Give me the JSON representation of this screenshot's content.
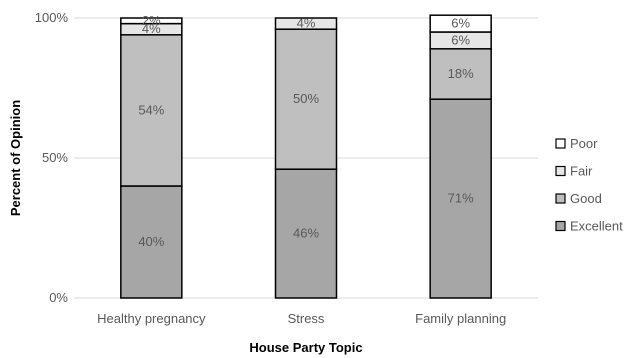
{
  "chart_data": {
    "type": "bar",
    "stacked": true,
    "categories": [
      "Healthy pregnancy",
      "Stress",
      "Family planning"
    ],
    "series": [
      {
        "name": "Excellent",
        "values": [
          40,
          46,
          71
        ],
        "labels": [
          "40%",
          "46%",
          "71%"
        ],
        "color": "#a6a6a6"
      },
      {
        "name": "Good",
        "values": [
          54,
          50,
          18
        ],
        "labels": [
          "54%",
          "50%",
          "18%"
        ],
        "color": "#bfbfbf"
      },
      {
        "name": "Fair",
        "values": [
          4,
          4,
          6
        ],
        "labels": [
          "4%",
          "4%",
          "6%"
        ],
        "color": "#e6e6e6"
      },
      {
        "name": "Poor",
        "values": [
          2,
          0,
          6
        ],
        "labels": [
          "2%",
          "",
          "6%"
        ],
        "color": "#ffffff"
      }
    ],
    "yticks": [
      "0%",
      "50%",
      "100%"
    ],
    "ylim": [
      0,
      100
    ],
    "xlabel": "House Party Topic",
    "ylabel": "Percent of Opinion",
    "legend": "right",
    "grid": true
  }
}
